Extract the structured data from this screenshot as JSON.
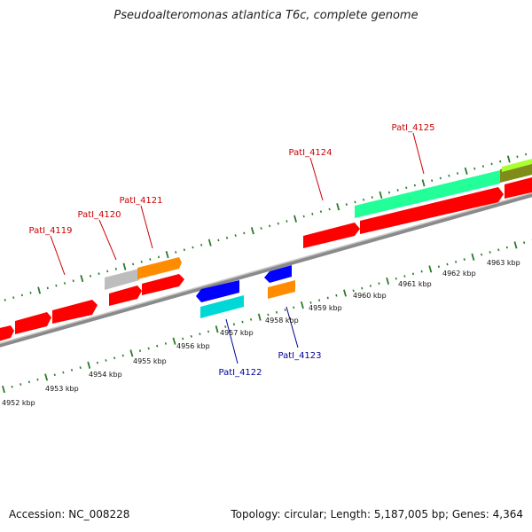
{
  "title": "Pseudoalteromonas atlantica T6c, complete genome",
  "footer": {
    "accession": "Accession: NC_008228",
    "summary": "Topology: circular; Length: 5,187,005 bp; Genes: 4,364"
  },
  "colors": {
    "red": "#ff0000",
    "orange": "#ff8c00",
    "gray": "#bdbdbd",
    "blue": "#0000ff",
    "cyan": "#00e0e0",
    "spring_green": "#22ff99",
    "olive": "#7f8c1a",
    "yellow_green": "#aaff33",
    "tick_green": "#2a7a2a",
    "forward_label": "#cc0000",
    "reverse_label": "#000099"
  },
  "scale_labels": [
    "4952 kbp",
    "4953 kbp",
    "4954 kbp",
    "4955 kbp",
    "4956 kbp",
    "4957 kbp",
    "4958 kbp",
    "4959 kbp",
    "4960 kbp",
    "4961 kbp",
    "4962 kbp",
    "4963 kbp"
  ],
  "forward_gene_labels": [
    "PatI_4119",
    "PatI_4120",
    "PatI_4121",
    "PatI_4124",
    "PatI_4125"
  ],
  "reverse_gene_labels": [
    "PatI_4122",
    "PatI_4123"
  ]
}
